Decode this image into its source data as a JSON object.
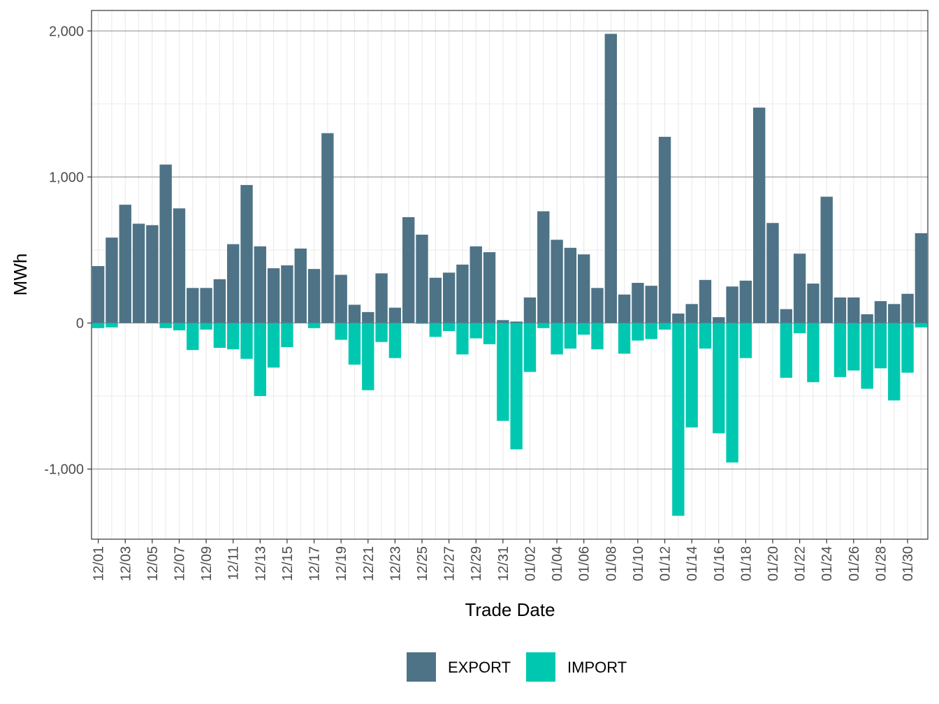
{
  "chart_data": {
    "type": "bar",
    "xlabel": "Trade Date",
    "ylabel": "MWh",
    "ylim": [
      -1480,
      2140
    ],
    "yticks": [
      -1000,
      0,
      1000,
      2000
    ],
    "ytick_labels": [
      "-1,000",
      "0",
      "1,000",
      "2,000"
    ],
    "grid": true,
    "legend_position": "bottom",
    "colors": {
      "EXPORT": "#4e7387",
      "IMPORT": "#00c8b0"
    },
    "categories": [
      "12/01",
      "12/02",
      "12/03",
      "12/04",
      "12/05",
      "12/06",
      "12/07",
      "12/08",
      "12/09",
      "12/10",
      "12/11",
      "12/12",
      "12/13",
      "12/14",
      "12/15",
      "12/16",
      "12/17",
      "12/18",
      "12/19",
      "12/20",
      "12/21",
      "12/22",
      "12/23",
      "12/24",
      "12/25",
      "12/26",
      "12/27",
      "12/28",
      "12/29",
      "12/30",
      "12/31",
      "01/01",
      "01/02",
      "01/03",
      "01/04",
      "01/05",
      "01/06",
      "01/07",
      "01/08",
      "01/09",
      "01/10",
      "01/11",
      "01/12",
      "01/13",
      "01/14",
      "01/15",
      "01/16",
      "01/17",
      "01/18",
      "01/19",
      "01/20",
      "01/21",
      "01/22",
      "01/23",
      "01/24",
      "01/25",
      "01/26",
      "01/27",
      "01/28",
      "01/29",
      "01/30",
      "01/31"
    ],
    "tick_labels": [
      "12/01",
      "12/03",
      "12/05",
      "12/07",
      "12/09",
      "12/11",
      "12/13",
      "12/15",
      "12/17",
      "12/19",
      "12/21",
      "12/23",
      "12/25",
      "12/27",
      "12/29",
      "12/31",
      "01/02",
      "01/04",
      "01/06",
      "01/08",
      "01/10",
      "01/12",
      "01/14",
      "01/16",
      "01/18",
      "01/20",
      "01/22",
      "01/24",
      "01/26",
      "01/28",
      "01/30"
    ],
    "series": [
      {
        "name": "EXPORT",
        "values": [
          390,
          585,
          810,
          680,
          670,
          1085,
          785,
          240,
          240,
          300,
          540,
          945,
          525,
          375,
          395,
          510,
          370,
          1300,
          330,
          125,
          75,
          340,
          105,
          725,
          605,
          310,
          345,
          400,
          525,
          485,
          20,
          10,
          175,
          765,
          570,
          515,
          470,
          240,
          1980,
          195,
          275,
          255,
          1275,
          65,
          130,
          295,
          40,
          250,
          290,
          1475,
          685,
          95,
          475,
          270,
          865,
          175,
          175,
          60,
          150,
          130,
          200,
          615
        ]
      },
      {
        "name": "IMPORT",
        "values": [
          -35,
          -30,
          0,
          0,
          0,
          -35,
          -50,
          -185,
          -45,
          -170,
          -180,
          -245,
          -500,
          -305,
          -165,
          0,
          -35,
          0,
          -115,
          -285,
          -460,
          -130,
          -240,
          0,
          -5,
          -95,
          -55,
          -215,
          -105,
          -145,
          -670,
          -865,
          -335,
          -35,
          -215,
          -175,
          -80,
          -180,
          0,
          -210,
          -120,
          -110,
          -45,
          -1320,
          -715,
          -175,
          -755,
          -955,
          -240,
          0,
          0,
          -375,
          -70,
          -405,
          0,
          -370,
          -325,
          -450,
          -310,
          -530,
          -340,
          -30
        ]
      }
    ]
  }
}
